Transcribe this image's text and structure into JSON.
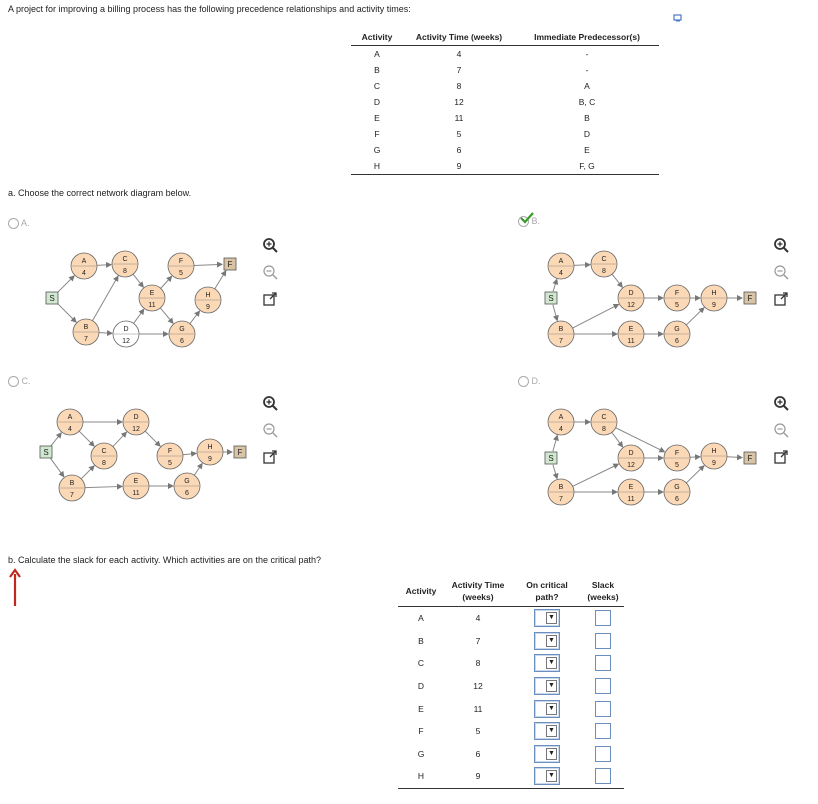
{
  "intro": "A project for improving a billing process has the following precedence relationships and activity times:",
  "prec_table": {
    "headers": [
      "Activity",
      "Activity Time (weeks)",
      "Immediate Predecessor(s)"
    ],
    "rows": [
      [
        "A",
        "4",
        "-"
      ],
      [
        "B",
        "7",
        "-"
      ],
      [
        "C",
        "8",
        "A"
      ],
      [
        "D",
        "12",
        "B, C"
      ],
      [
        "E",
        "11",
        "B"
      ],
      [
        "F",
        "5",
        "D"
      ],
      [
        "G",
        "6",
        "E"
      ],
      [
        "H",
        "9",
        "F, G"
      ]
    ]
  },
  "part_a": "a. Choose the correct network diagram below.",
  "options": [
    {
      "label": "A.",
      "selected": false
    },
    {
      "label": "B.",
      "selected": true
    },
    {
      "label": "C.",
      "selected": false
    },
    {
      "label": "D.",
      "selected": false
    }
  ],
  "diagrams": {
    "A": {
      "nodes": [
        {
          "id": "S",
          "t": "S",
          "kind": "sq",
          "c": "#cfe8cf"
        },
        {
          "id": "A",
          "t": "A",
          "n": "4"
        },
        {
          "id": "C",
          "t": "C",
          "n": "8"
        },
        {
          "id": "F",
          "t": "F",
          "n": "5"
        },
        {
          "id": "F2",
          "t": "F",
          "kind": "sq",
          "c": "#d9c3a5"
        },
        {
          "id": "E",
          "t": "E",
          "n": "11"
        },
        {
          "id": "H",
          "t": "H",
          "n": "9"
        },
        {
          "id": "B",
          "t": "B",
          "n": "7"
        },
        {
          "id": "D",
          "t": "D",
          "n": "12",
          "white": true
        },
        {
          "id": "G",
          "t": "G",
          "n": "6"
        }
      ]
    },
    "B": {
      "nodes": [
        {
          "id": "A",
          "t": "A",
          "n": "4"
        },
        {
          "id": "C",
          "t": "C",
          "n": "8"
        },
        {
          "id": "S",
          "t": "S",
          "kind": "sq",
          "c": "#cfe8cf"
        },
        {
          "id": "D",
          "t": "D",
          "n": "12"
        },
        {
          "id": "F",
          "t": "F",
          "n": "5"
        },
        {
          "id": "H",
          "t": "H",
          "n": "9"
        },
        {
          "id": "F2",
          "t": "F",
          "kind": "sq",
          "c": "#d9c3a5"
        },
        {
          "id": "B",
          "t": "B",
          "n": "7"
        },
        {
          "id": "E",
          "t": "E",
          "n": "11"
        },
        {
          "id": "G",
          "t": "G",
          "n": "6"
        }
      ]
    },
    "C": {
      "nodes": [
        {
          "id": "A",
          "t": "A",
          "n": "4"
        },
        {
          "id": "D",
          "t": "D",
          "n": "12"
        },
        {
          "id": "S",
          "t": "S",
          "kind": "sq",
          "c": "#cfe8cf"
        },
        {
          "id": "C",
          "t": "C",
          "n": "8"
        },
        {
          "id": "F",
          "t": "F",
          "n": "5"
        },
        {
          "id": "H",
          "t": "H",
          "n": "9"
        },
        {
          "id": "F2",
          "t": "F",
          "kind": "sq",
          "c": "#d9c3a5"
        },
        {
          "id": "B",
          "t": "B",
          "n": "7"
        },
        {
          "id": "E",
          "t": "E",
          "n": "11"
        },
        {
          "id": "G",
          "t": "G",
          "n": "6"
        }
      ]
    },
    "D": {
      "nodes": [
        {
          "id": "A",
          "t": "A",
          "n": "4"
        },
        {
          "id": "C",
          "t": "C",
          "n": "8"
        },
        {
          "id": "S",
          "t": "S",
          "kind": "sq",
          "c": "#cfe8cf"
        },
        {
          "id": "D",
          "t": "D",
          "n": "12"
        },
        {
          "id": "F",
          "t": "F",
          "n": "5"
        },
        {
          "id": "H",
          "t": "H",
          "n": "9"
        },
        {
          "id": "F2",
          "t": "F",
          "kind": "sq",
          "c": "#d9c3a5"
        },
        {
          "id": "B",
          "t": "B",
          "n": "7"
        },
        {
          "id": "E",
          "t": "E",
          "n": "11"
        },
        {
          "id": "G",
          "t": "G",
          "n": "6"
        }
      ]
    }
  },
  "part_b": "b. Calculate the slack for each activity. Which activities are on the critical path?",
  "ans_table": {
    "headers": [
      "Activity",
      "Activity Time (weeks)",
      "On critical path?",
      "Slack (weeks)"
    ],
    "rows": [
      [
        "A",
        "4"
      ],
      [
        "B",
        "7"
      ],
      [
        "C",
        "8"
      ],
      [
        "D",
        "12"
      ],
      [
        "E",
        "11"
      ],
      [
        "F",
        "5"
      ],
      [
        "G",
        "6"
      ],
      [
        "H",
        "9"
      ]
    ]
  },
  "colors": {
    "node_fill": "#fcd9b6",
    "start_fill": "#cfe8cf",
    "finish_fill": "#d9c3a5",
    "check": "#3a9a2a",
    "pointer": "#c0281e"
  },
  "icons": [
    "zoom-in-icon",
    "zoom-out-icon",
    "popout-icon",
    "info-icon",
    "checkmark-icon",
    "red-arrow-icon"
  ]
}
